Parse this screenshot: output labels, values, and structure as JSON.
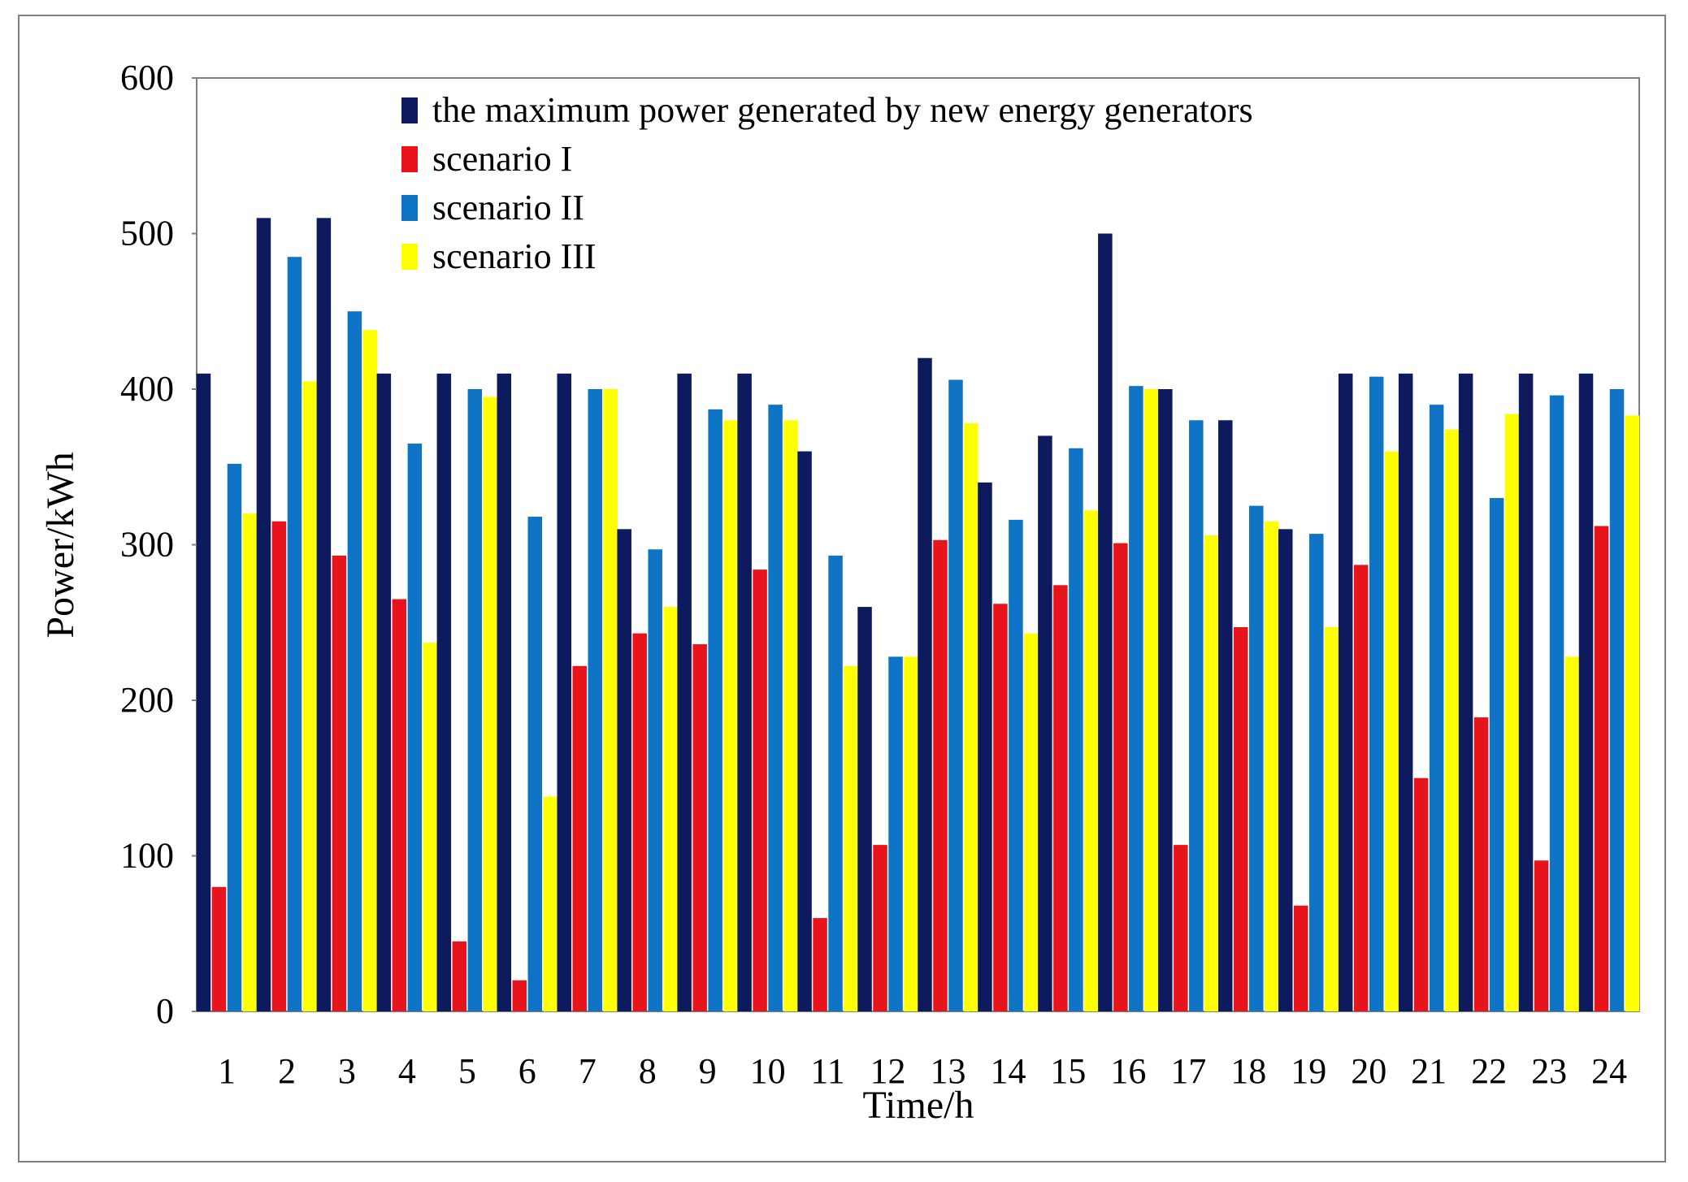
{
  "chart_data": {
    "type": "bar",
    "title": "",
    "xlabel": "Time/h",
    "ylabel": "Power/kWh",
    "ylim": [
      0,
      600
    ],
    "yticks": [
      "0",
      "100",
      "200",
      "300",
      "400",
      "500",
      "600"
    ],
    "categories": [
      "1",
      "2",
      "3",
      "4",
      "5",
      "6",
      "7",
      "8",
      "9",
      "10",
      "11",
      "12",
      "13",
      "14",
      "15",
      "16",
      "17",
      "18",
      "19",
      "20",
      "21",
      "22",
      "23",
      "24"
    ],
    "legend_position": "top-center",
    "grid": false,
    "series": [
      {
        "name": "the maximum power generated by new energy generators",
        "color": "#0d1a5e",
        "values": [
          410,
          510,
          510,
          410,
          410,
          410,
          410,
          310,
          410,
          410,
          360,
          260,
          420,
          340,
          370,
          500,
          400,
          380,
          310,
          410,
          410,
          410,
          410,
          410
        ]
      },
      {
        "name": "scenario I",
        "color": "#e8141b",
        "values": [
          80,
          315,
          293,
          265,
          45,
          20,
          222,
          243,
          236,
          284,
          60,
          107,
          303,
          262,
          274,
          301,
          107,
          247,
          68,
          287,
          150,
          189,
          97,
          312
        ]
      },
      {
        "name": "scenario II",
        "color": "#0f74c6",
        "values": [
          352,
          485,
          450,
          365,
          400,
          318,
          400,
          297,
          387,
          390,
          293,
          228,
          406,
          316,
          362,
          402,
          380,
          325,
          307,
          408,
          390,
          330,
          396,
          400
        ]
      },
      {
        "name": "scenario III",
        "color": "#ffff00",
        "values": [
          320,
          405,
          438,
          237,
          395,
          138,
          400,
          260,
          380,
          380,
          222,
          228,
          378,
          243,
          322,
          400,
          306,
          315,
          247,
          360,
          374,
          384,
          228,
          383
        ]
      }
    ]
  }
}
